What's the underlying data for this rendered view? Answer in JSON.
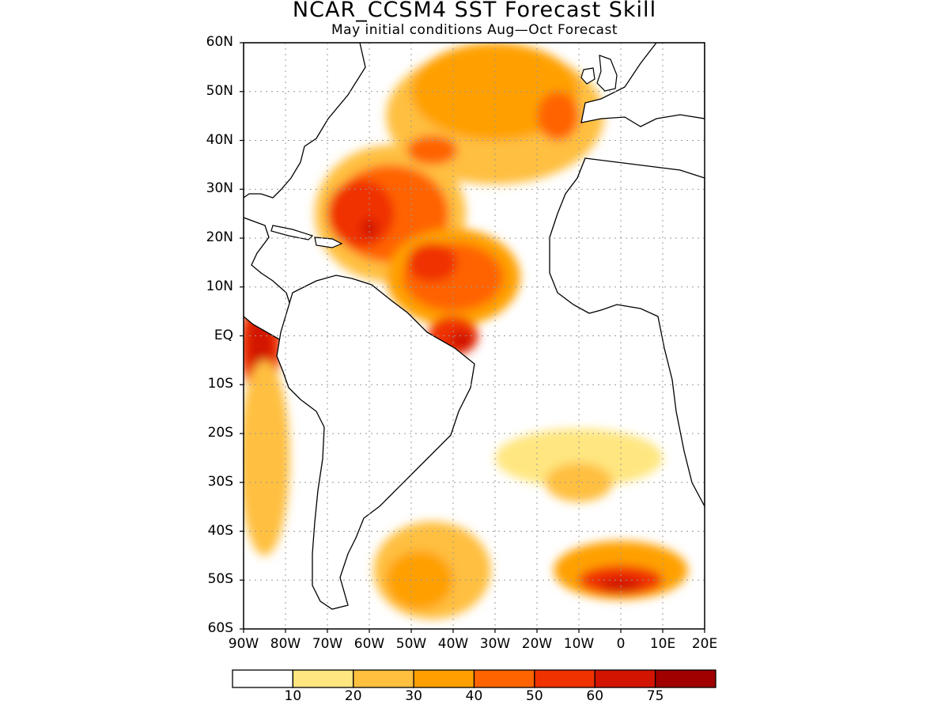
{
  "title": "NCAR_CCSM4 SST Forecast Skill",
  "subtitle": "May initial conditions  Aug—Oct Forecast",
  "map": {
    "lon_range": [
      -90,
      20
    ],
    "lat_range": [
      -60,
      60
    ],
    "grid": "dotted",
    "lat_ticks": [
      {
        "value": 60,
        "label": "60N"
      },
      {
        "value": 50,
        "label": "50N"
      },
      {
        "value": 40,
        "label": "40N"
      },
      {
        "value": 30,
        "label": "30N"
      },
      {
        "value": 20,
        "label": "20N"
      },
      {
        "value": 10,
        "label": "10N"
      },
      {
        "value": 0,
        "label": "EQ"
      },
      {
        "value": -10,
        "label": "10S"
      },
      {
        "value": -20,
        "label": "20S"
      },
      {
        "value": -30,
        "label": "30S"
      },
      {
        "value": -40,
        "label": "40S"
      },
      {
        "value": -50,
        "label": "50S"
      },
      {
        "value": -60,
        "label": "60S"
      }
    ],
    "lon_ticks": [
      {
        "value": -90,
        "label": "90W"
      },
      {
        "value": -80,
        "label": "80W"
      },
      {
        "value": -70,
        "label": "70W"
      },
      {
        "value": -60,
        "label": "60W"
      },
      {
        "value": -50,
        "label": "50W"
      },
      {
        "value": -40,
        "label": "40W"
      },
      {
        "value": -30,
        "label": "30W"
      },
      {
        "value": -20,
        "label": "20W"
      },
      {
        "value": -10,
        "label": "10W"
      },
      {
        "value": 0,
        "label": "0"
      },
      {
        "value": 10,
        "label": "10E"
      },
      {
        "value": 20,
        "label": "20E"
      }
    ]
  },
  "colorbar": {
    "bins": [
      {
        "color": "#ffffff"
      },
      {
        "color": "#ffe680"
      },
      {
        "color": "#ffbf3f"
      },
      {
        "color": "#ffa000"
      },
      {
        "color": "#ff6400"
      },
      {
        "color": "#f03200"
      },
      {
        "color": "#d21400"
      },
      {
        "color": "#a00000"
      }
    ],
    "labels": [
      "10",
      "20",
      "30",
      "40",
      "50",
      "60",
      "75"
    ]
  },
  "skill_regions": [
    {
      "lon": -55,
      "lat": 25,
      "rx": 18,
      "ry": 14,
      "level": 2
    },
    {
      "lon": -55,
      "lat": 25,
      "rx": 14,
      "ry": 10,
      "level": 4
    },
    {
      "lon": -62,
      "lat": 25,
      "rx": 8,
      "ry": 7,
      "level": 5
    },
    {
      "lon": -60,
      "lat": 22,
      "rx": 2,
      "ry": 2,
      "level": 6
    },
    {
      "lon": -40,
      "lat": 12,
      "rx": 16,
      "ry": 10,
      "level": 3
    },
    {
      "lon": -40,
      "lat": 12,
      "rx": 12,
      "ry": 7,
      "level": 4
    },
    {
      "lon": -45,
      "lat": 15,
      "rx": 6,
      "ry": 4,
      "level": 5
    },
    {
      "lon": -40,
      "lat": 0,
      "rx": 6,
      "ry": 4,
      "level": 5
    },
    {
      "lon": -38,
      "lat": -1,
      "rx": 3,
      "ry": 2,
      "level": 6
    },
    {
      "lon": -30,
      "lat": 45,
      "rx": 26,
      "ry": 14,
      "level": 2
    },
    {
      "lon": -30,
      "lat": 50,
      "rx": 20,
      "ry": 10,
      "level": 3
    },
    {
      "lon": -45,
      "lat": 38,
      "rx": 6,
      "ry": 3,
      "level": 4
    },
    {
      "lon": -15,
      "lat": 45,
      "rx": 5,
      "ry": 5,
      "level": 4
    },
    {
      "lon": -86,
      "lat": -2,
      "rx": 5,
      "ry": 10,
      "level": 5
    },
    {
      "lon": -86,
      "lat": -2,
      "rx": 3,
      "ry": 7,
      "level": 6
    },
    {
      "lon": -85,
      "lat": -25,
      "rx": 6,
      "ry": 20,
      "level": 2
    },
    {
      "lon": -45,
      "lat": -48,
      "rx": 14,
      "ry": 10,
      "level": 2
    },
    {
      "lon": -48,
      "lat": -50,
      "rx": 8,
      "ry": 6,
      "level": 3
    },
    {
      "lon": 0,
      "lat": -48,
      "rx": 16,
      "ry": 6,
      "level": 3
    },
    {
      "lon": 0,
      "lat": -50,
      "rx": 10,
      "ry": 3,
      "level": 5
    },
    {
      "lon": 0,
      "lat": -51,
      "rx": 5,
      "ry": 1.5,
      "level": 6
    },
    {
      "lon": -10,
      "lat": -25,
      "rx": 20,
      "ry": 6,
      "level": 1
    },
    {
      "lon": -10,
      "lat": -30,
      "rx": 8,
      "ry": 4,
      "level": 2
    }
  ]
}
